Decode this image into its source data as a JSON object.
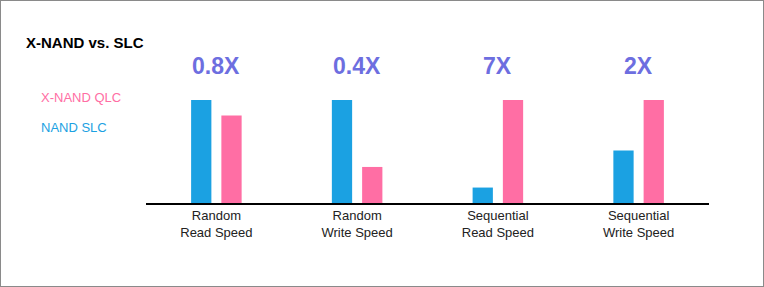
{
  "chart_data": {
    "type": "bar",
    "title": "X-NAND vs. SLC",
    "categories": [
      "Random\nRead Speed",
      "Random\nWrite Speed",
      "Sequential\nRead Speed",
      "Sequential\nWrite Speed"
    ],
    "series": [
      {
        "name": "NAND SLC",
        "color": "#1ba1e2",
        "values": [
          100,
          100,
          15,
          51
        ]
      },
      {
        "name": "X-NAND QLC",
        "color": "#ff6ea4",
        "values": [
          85,
          35,
          100,
          100
        ]
      }
    ],
    "annotations": [
      "0.8X",
      "0.4X",
      "7X",
      "2X"
    ],
    "ylim": [
      0,
      100
    ],
    "grid": false,
    "legend": "left",
    "tick_labels": "x"
  }
}
